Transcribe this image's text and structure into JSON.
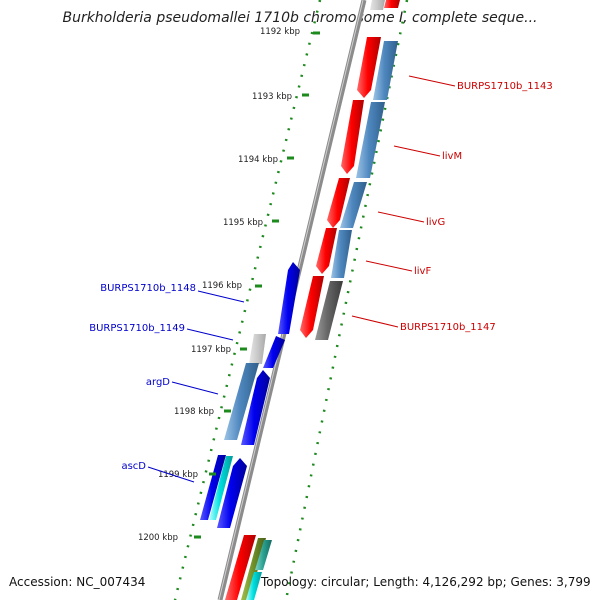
{
  "title": "Burkholderia pseudomallei 1710b chromosome I, complete seque...",
  "footer": {
    "accession": "Accession: NC_007434",
    "summary": "Topology: circular; Length: 4,126,292 bp; Genes: 3,799"
  },
  "colors": {
    "backbone": "#8c8c8c",
    "dot_grid": "#1d8a1d",
    "label_forward": "#cc0000",
    "label_reverse": "#0000cc"
  },
  "ticks": [
    "1192 kbp",
    "1193 kbp",
    "1194 kbp",
    "1195 kbp",
    "1196 kbp",
    "1197 kbp",
    "1198 kbp",
    "1199 kbp",
    "1200 kbp"
  ],
  "gene_labels": [
    {
      "name": "BURPS1710b_1143",
      "strand": "forward"
    },
    {
      "name": "livM",
      "strand": "forward"
    },
    {
      "name": "livG",
      "strand": "forward"
    },
    {
      "name": "livF",
      "strand": "forward"
    },
    {
      "name": "BURPS1710b_1147",
      "strand": "forward"
    },
    {
      "name": "BURPS1710b_1148",
      "strand": "reverse"
    },
    {
      "name": "BURPS1710b_1149",
      "strand": "reverse"
    },
    {
      "name": "argD",
      "strand": "reverse"
    },
    {
      "name": "ascD",
      "strand": "reverse"
    }
  ]
}
